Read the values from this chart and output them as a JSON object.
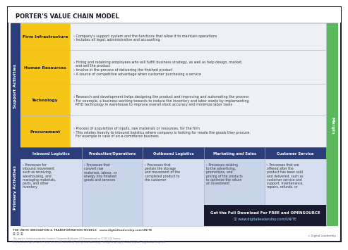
{
  "title": "PORTER'S VALUE CHAIN MODEL",
  "title_color": "#1a1a2e",
  "bg_color": "#ffffff",
  "border_color": "#1a1a2e",
  "support_label": "Support Activities",
  "primary_label": "Primary Activities",
  "margin_label": "Margin",
  "support_rows": [
    {
      "name": "Firm Infrastructure",
      "bg": "#f5c518",
      "text_lines": [
        "› Company's support system and the functions that allow it to maintain operations",
        "› Includes all legal, administrative and accounting"
      ]
    },
    {
      "name": "Human Resources",
      "bg": "#f5c518",
      "text_lines": [
        "› Hiring and retaining employees who will fulfill business strategy, as well as help design, market,",
        "  and sell the product",
        "› Involve in the process of delivering the finished product",
        "› A source of competitive advantage when customer purchasing a service"
      ]
    },
    {
      "name": "Technology",
      "bg": "#f5c518",
      "text_lines": [
        "› Research and development helps designing the product and improving and automating the process",
        "› For example, a business working towards to reduce the inventory and labor waste by implementing",
        "  RFID technology in warehouse to improve overall stock accuracy and minimize labor tasks"
      ]
    },
    {
      "name": "Procurement",
      "bg": "#f5c518",
      "text_lines": [
        "› Process of acquisition of inputs, raw materials or resources, for the firm",
        "› This relates heavily to inbound logistics where company is looking for resale the goods they procure.",
        "  For example in case of an e-commerce business"
      ]
    }
  ],
  "primary_header_bg": "#2c3e7a",
  "primary_cols": [
    {
      "name": "Inbound Logistics",
      "body_bg": "#d6dff0",
      "text_lines": [
        "› Processes for",
        "inbound movement",
        "such as receiving,",
        "warehousing, and",
        "managing materials,",
        "parts, and other",
        "inventory"
      ]
    },
    {
      "name": "Production/Operations",
      "body_bg": "#c8d4ea",
      "text_lines": [
        "› Processes that",
        "convert raw",
        "materials, labour, or",
        "energy into finished",
        "goods and services"
      ]
    },
    {
      "name": "Outbound Logistics",
      "body_bg": "#d6dff0",
      "text_lines": [
        "› Processes that",
        "pertain the storage",
        "and movement of the",
        "completed product to",
        "the customer"
      ]
    },
    {
      "name": "Marketing and Sales",
      "body_bg": "#c8d4ea",
      "text_lines": [
        "› Processes relating",
        "to the advertising,",
        "promotions, and",
        "pricing of the products",
        "to optimize the return",
        "on investment"
      ]
    },
    {
      "name": "Customer Service",
      "body_bg": "#d6dff0",
      "text_lines": [
        "› Processes that are",
        "offered after the",
        "product has been sold",
        "and delivered, such as",
        "customer service and",
        "support, maintenance,",
        "repairs, refunds, or"
      ]
    }
  ],
  "cta_bg": "#1a1a2e",
  "cta_line1": "Get the Full Download For FREE and OPENSOURCE",
  "cta_line2": "ⓘ www.digitalleadership.com/UNITE",
  "cta_color": "#ffffff",
  "footer_left": "THE UNITE INNOVATION & TRANSFORMATION MODELS   www.digitalleadership.com/UNITE",
  "footer_icons": "ⓞ ⓞ ⓞ",
  "footer_sub": "This work is licensed under the Creative Commons Attribution 4.0 International (or CC BY 4.0) license.\nFirst described by Michael E. Porter in his 1985 best-seller „Competitive Advantage“ Designed by Digital Leadership AG - digitalleadership.com",
  "footer_right": "> Digital Leadership",
  "margin_color": "#5cb85c",
  "side_bg": "#2c3e7a",
  "grid_color": "#b0b8c8",
  "content_bg": "#eef0f5",
  "yellow_bg": "#f5c518"
}
